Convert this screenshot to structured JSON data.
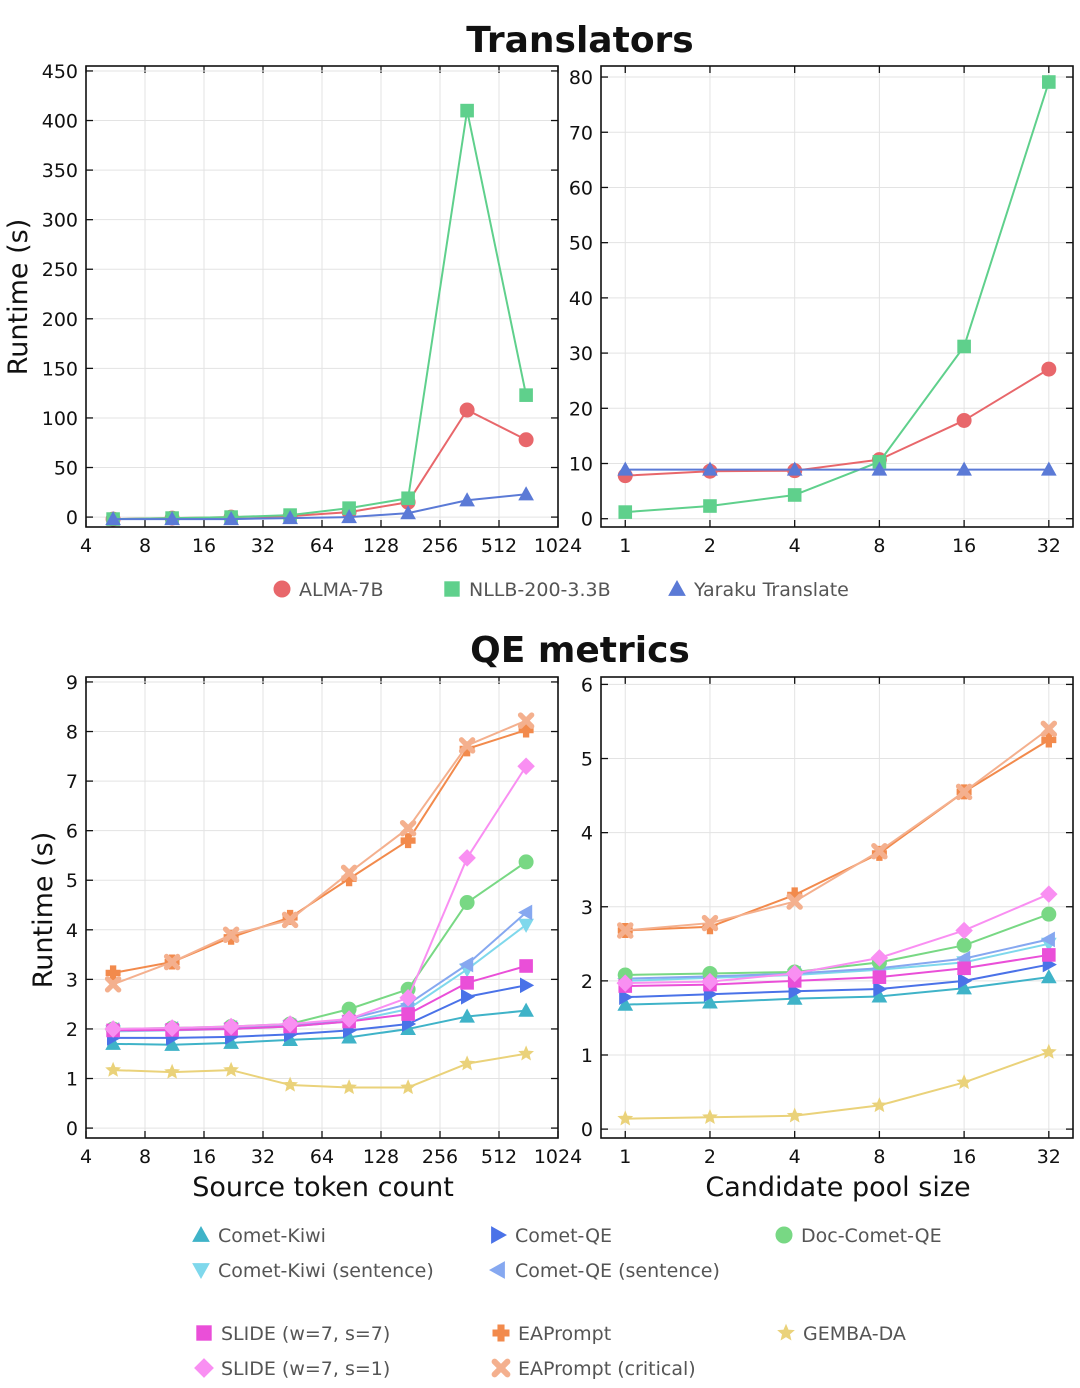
{
  "titles": {
    "translators": "Translators",
    "qe": "QE metrics"
  },
  "axis_labels": {
    "runtime": "Runtime (s)",
    "source": "Source token count",
    "pool": "Candidate pool size"
  },
  "chart_data": [
    {
      "id": "tr-src",
      "type": "line",
      "title": "Translators",
      "xlabel": "",
      "ylabel": "Runtime (s)",
      "x_scale": "log2",
      "xlim": [
        4,
        1024
      ],
      "ylim": [
        -10,
        455
      ],
      "x_ticks": [
        4,
        8,
        16,
        32,
        64,
        128,
        256,
        512,
        1024
      ],
      "x_tick_labels": [
        "4",
        "8",
        "16",
        "32",
        "64",
        "128",
        "256",
        "512",
        "1024"
      ],
      "y_ticks": [
        0,
        50,
        100,
        150,
        200,
        250,
        300,
        350,
        400,
        450
      ],
      "y_tick_labels": [
        "0",
        "50",
        "100",
        "150",
        "200",
        "250",
        "300",
        "350",
        "400",
        "450"
      ],
      "x": [
        5.5,
        11,
        22,
        44,
        88,
        176,
        352,
        704
      ],
      "series": [
        {
          "name": "ALMA-7B",
          "marker": "circle",
          "values": [
            -2,
            -1,
            0,
            1,
            5,
            15,
            108,
            78
          ]
        },
        {
          "name": "NLLB-200-3.3B",
          "marker": "square",
          "values": [
            -2,
            -1,
            0,
            2,
            9,
            19,
            410,
            123
          ]
        },
        {
          "name": "Yaraku Translate",
          "marker": "triangle-up",
          "values": [
            -2,
            -2,
            -2,
            -1,
            0,
            4,
            17,
            23
          ]
        }
      ]
    },
    {
      "id": "tr-pool",
      "type": "line",
      "title": "Translators",
      "xlabel": "",
      "ylabel": "",
      "x_scale": "log2",
      "xlim": [
        0.82,
        39
      ],
      "ylim": [
        -1.5,
        82
      ],
      "x_ticks": [
        1,
        2,
        4,
        8,
        16,
        32
      ],
      "x_tick_labels": [
        "1",
        "2",
        "4",
        "8",
        "16",
        "32"
      ],
      "y_ticks": [
        0,
        10,
        20,
        30,
        40,
        50,
        60,
        70,
        80
      ],
      "y_tick_labels": [
        "0",
        "10",
        "20",
        "30",
        "40",
        "50",
        "60",
        "70",
        "80"
      ],
      "x": [
        1,
        2,
        4,
        8,
        16,
        32
      ],
      "series": [
        {
          "name": "ALMA-7B",
          "marker": "circle",
          "values": [
            7.8,
            8.6,
            8.7,
            10.7,
            17.8,
            27.1
          ]
        },
        {
          "name": "NLLB-200-3.3B",
          "marker": "square",
          "values": [
            1.2,
            2.3,
            4.3,
            10.3,
            31.2,
            79.1
          ]
        },
        {
          "name": "Yaraku Translate",
          "marker": "triangle-up",
          "values": [
            8.9,
            8.9,
            8.9,
            8.9,
            8.9,
            8.9
          ]
        }
      ]
    },
    {
      "id": "qe-src",
      "type": "line",
      "title": "QE metrics",
      "xlabel": "Source token count",
      "ylabel": "Runtime (s)",
      "x_scale": "log2",
      "xlim": [
        4,
        1024
      ],
      "ylim": [
        -0.2,
        9.1
      ],
      "x_ticks": [
        4,
        8,
        16,
        32,
        64,
        128,
        256,
        512,
        1024
      ],
      "x_tick_labels": [
        "4",
        "8",
        "16",
        "32",
        "64",
        "128",
        "256",
        "512",
        "1024"
      ],
      "y_ticks": [
        0,
        1,
        2,
        3,
        4,
        5,
        6,
        7,
        8,
        9
      ],
      "y_tick_labels": [
        "0",
        "1",
        "2",
        "3",
        "4",
        "5",
        "6",
        "7",
        "8",
        "9"
      ],
      "x": [
        5.5,
        11,
        22,
        44,
        88,
        176,
        352,
        704
      ],
      "series": [
        {
          "name": "Comet-Kiwi",
          "marker": "triangle-up",
          "values": [
            1.7,
            1.68,
            1.72,
            1.78,
            1.83,
            2.0,
            2.25,
            2.37
          ]
        },
        {
          "name": "Comet-Kiwi (sentence)",
          "marker": "triangle-down",
          "values": [
            1.95,
            1.97,
            2.0,
            2.05,
            2.15,
            2.4,
            3.2,
            4.1
          ]
        },
        {
          "name": "Comet-QE",
          "marker": "triangle-right",
          "values": [
            1.82,
            1.82,
            1.84,
            1.89,
            1.97,
            2.1,
            2.65,
            2.88
          ]
        },
        {
          "name": "Comet-QE (sentence)",
          "marker": "triangle-left",
          "values": [
            1.98,
            2.0,
            2.02,
            2.06,
            2.2,
            2.5,
            3.3,
            4.35
          ]
        },
        {
          "name": "Doc-Comet-QE",
          "marker": "circle",
          "values": [
            2.0,
            2.02,
            2.05,
            2.1,
            2.4,
            2.8,
            4.55,
            5.37
          ]
        },
        {
          "name": "SLIDE (w=7, s=7)",
          "marker": "square",
          "values": [
            1.97,
            1.98,
            2.0,
            2.05,
            2.15,
            2.3,
            2.93,
            3.27
          ]
        },
        {
          "name": "SLIDE (w=7, s=1)",
          "marker": "diamond",
          "values": [
            2.0,
            2.02,
            2.05,
            2.1,
            2.2,
            2.63,
            5.45,
            7.3
          ]
        },
        {
          "name": "EAPrompt",
          "marker": "plus",
          "values": [
            3.13,
            3.35,
            3.85,
            4.25,
            5.03,
            5.8,
            7.65,
            8.03
          ]
        },
        {
          "name": "EAPrompt (critical)",
          "marker": "x",
          "values": [
            2.9,
            3.35,
            3.9,
            4.2,
            5.15,
            6.05,
            7.72,
            8.22
          ]
        },
        {
          "name": "GEMBA-DA",
          "marker": "star",
          "values": [
            1.17,
            1.13,
            1.17,
            0.87,
            0.82,
            0.82,
            1.3,
            1.5
          ]
        }
      ]
    },
    {
      "id": "qe-pool",
      "type": "line",
      "title": "QE metrics",
      "xlabel": "Candidate pool size",
      "ylabel": "",
      "x_scale": "log2",
      "xlim": [
        0.82,
        39
      ],
      "ylim": [
        -0.12,
        6.1
      ],
      "x_ticks": [
        1,
        2,
        4,
        8,
        16,
        32
      ],
      "x_tick_labels": [
        "1",
        "2",
        "4",
        "8",
        "16",
        "32"
      ],
      "y_ticks": [
        0,
        1,
        2,
        3,
        4,
        5,
        6
      ],
      "y_tick_labels": [
        "0",
        "1",
        "2",
        "3",
        "4",
        "5",
        "6"
      ],
      "x": [
        1,
        2,
        4,
        8,
        16,
        32
      ],
      "series": [
        {
          "name": "Comet-Kiwi",
          "marker": "triangle-up",
          "values": [
            1.68,
            1.71,
            1.76,
            1.79,
            1.9,
            2.05
          ]
        },
        {
          "name": "Comet-Kiwi (sentence)",
          "marker": "triangle-down",
          "values": [
            2.0,
            2.04,
            2.08,
            2.15,
            2.25,
            2.5
          ]
        },
        {
          "name": "Comet-QE",
          "marker": "triangle-right",
          "values": [
            1.78,
            1.82,
            1.86,
            1.89,
            2.0,
            2.22
          ]
        },
        {
          "name": "Comet-QE (sentence)",
          "marker": "triangle-left",
          "values": [
            2.03,
            2.06,
            2.1,
            2.17,
            2.3,
            2.56
          ]
        },
        {
          "name": "Doc-Comet-QE",
          "marker": "circle",
          "values": [
            2.08,
            2.1,
            2.12,
            2.25,
            2.48,
            2.9
          ]
        },
        {
          "name": "SLIDE (w=7, s=7)",
          "marker": "square",
          "values": [
            1.93,
            1.95,
            2.0,
            2.05,
            2.17,
            2.35
          ]
        },
        {
          "name": "SLIDE (w=7, s=1)",
          "marker": "diamond",
          "values": [
            1.97,
            1.99,
            2.1,
            2.31,
            2.68,
            3.17
          ]
        },
        {
          "name": "EAPrompt",
          "marker": "plus",
          "values": [
            2.68,
            2.73,
            3.16,
            3.72,
            4.55,
            5.25
          ]
        },
        {
          "name": "EAPrompt (critical)",
          "marker": "x",
          "values": [
            2.68,
            2.78,
            3.07,
            3.75,
            4.55,
            5.4
          ]
        },
        {
          "name": "GEMBA-DA",
          "marker": "star",
          "values": [
            0.14,
            0.16,
            0.18,
            0.32,
            0.63,
            1.04
          ]
        }
      ]
    }
  ],
  "legends": {
    "translators": [
      {
        "name": "ALMA-7B",
        "marker": "circle"
      },
      {
        "name": "NLLB-200-3.3B",
        "marker": "square"
      },
      {
        "name": "Yaraku Translate",
        "marker": "triangle-up"
      }
    ],
    "qe": [
      {
        "name": "Comet-Kiwi",
        "marker": "triangle-up"
      },
      {
        "name": "Comet-QE",
        "marker": "triangle-right"
      },
      {
        "name": "Doc-Comet-QE",
        "marker": "circle"
      },
      {
        "name": "Comet-Kiwi (sentence)",
        "marker": "triangle-down"
      },
      {
        "name": "Comet-QE (sentence)",
        "marker": "triangle-left"
      },
      {
        "name": "SLIDE (w=7, s=7)",
        "marker": "square"
      },
      {
        "name": "EAPrompt",
        "marker": "plus"
      },
      {
        "name": "GEMBA-DA",
        "marker": "star"
      },
      {
        "name": "SLIDE (w=7, s=1)",
        "marker": "diamond"
      },
      {
        "name": "EAPrompt (critical)",
        "marker": "x"
      }
    ]
  },
  "colors": {
    "ALMA-7B": "#e8676b",
    "NLLB-200-3.3B": "#5fd08c",
    "Yaraku Translate": "#5b7ad6",
    "Comet-Kiwi": "#3fb3c8",
    "Comet-Kiwi (sentence)": "#7fd8ec",
    "Comet-QE": "#4a72e8",
    "Comet-QE (sentence)": "#86a8f0",
    "Doc-Comet-QE": "#78d884",
    "SLIDE (w=7, s=7)": "#ea4fd8",
    "SLIDE (w=7, s=1)": "#f98ff2",
    "EAPrompt": "#f28a4c",
    "EAPrompt (critical)": "#f4b08e",
    "GEMBA-DA": "#ead27a"
  }
}
